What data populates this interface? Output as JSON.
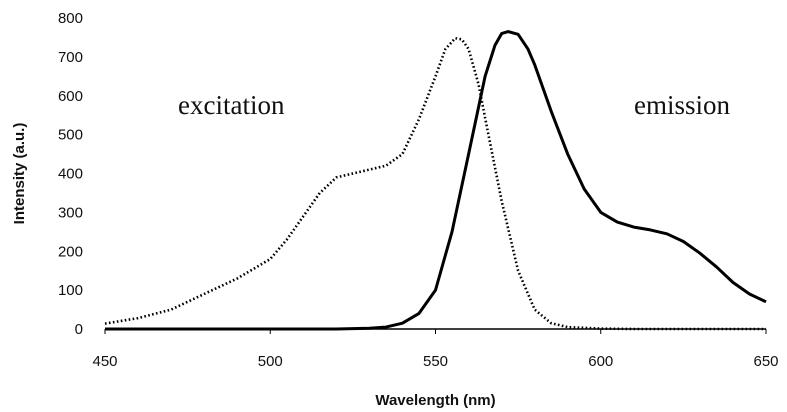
{
  "chart_data": {
    "type": "line",
    "title": "",
    "xlabel": "Wavelength (nm)",
    "ylabel": "Intensity (a.u.)",
    "xlim": [
      450,
      650
    ],
    "ylim": [
      0,
      800
    ],
    "xticks": [
      450,
      500,
      550,
      600,
      650
    ],
    "yticks": [
      0,
      100,
      200,
      300,
      400,
      500,
      600,
      700,
      800
    ],
    "grid": false,
    "legend": "none",
    "annotations": [
      "excitation",
      "emission"
    ],
    "series": [
      {
        "style": "dotted",
        "color": "#000000",
        "x": [
          450,
          460,
          470,
          480,
          490,
          500,
          505,
          510,
          515,
          520,
          525,
          530,
          535,
          540,
          545,
          550,
          553,
          556,
          558,
          560,
          563,
          566,
          570,
          575,
          580,
          585,
          590,
          600,
          610,
          620,
          630,
          640,
          650
        ],
        "y": [
          14,
          28,
          50,
          90,
          130,
          180,
          230,
          290,
          350,
          390,
          400,
          410,
          420,
          450,
          540,
          650,
          720,
          748,
          745,
          720,
          630,
          500,
          330,
          150,
          50,
          15,
          5,
          1,
          0,
          0,
          0,
          0,
          0
        ]
      },
      {
        "style": "solid",
        "color": "#000000",
        "x": [
          450,
          500,
          520,
          530,
          535,
          540,
          545,
          550,
          555,
          560,
          565,
          568,
          570,
          572,
          575,
          578,
          580,
          585,
          590,
          595,
          600,
          605,
          610,
          615,
          620,
          625,
          630,
          635,
          640,
          645,
          650
        ],
        "y": [
          0,
          0,
          0,
          2,
          5,
          15,
          40,
          100,
          250,
          450,
          650,
          730,
          760,
          765,
          758,
          720,
          680,
          560,
          450,
          360,
          300,
          275,
          262,
          255,
          245,
          225,
          195,
          160,
          120,
          90,
          70
        ]
      }
    ]
  }
}
